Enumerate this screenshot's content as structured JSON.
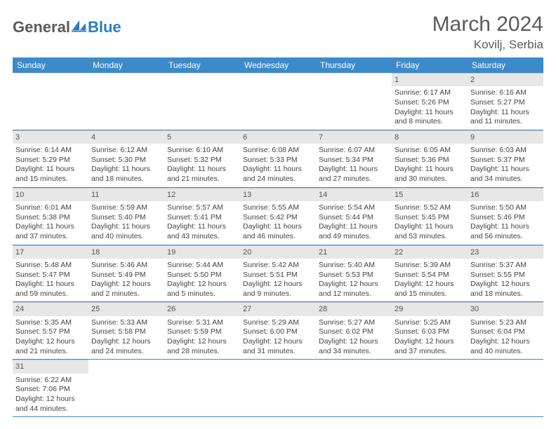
{
  "logo": {
    "part1": "General",
    "part2": "Blue"
  },
  "title": "March 2024",
  "location": "Kovilj, Serbia",
  "colors": {
    "header_bg": "#3c8ac9",
    "header_text": "#ffffff",
    "daynum_bg": "#e7e7e7",
    "row_border": "#3c8ac9",
    "text": "#444444",
    "title_text": "#5a5a5a"
  },
  "weekdays": [
    "Sunday",
    "Monday",
    "Tuesday",
    "Wednesday",
    "Thursday",
    "Friday",
    "Saturday"
  ],
  "grid": {
    "first_weekday_index": 5,
    "num_days": 31
  },
  "days": {
    "1": {
      "sunrise": "6:17 AM",
      "sunset": "5:26 PM",
      "daylight": "11 hours and 8 minutes."
    },
    "2": {
      "sunrise": "6:16 AM",
      "sunset": "5:27 PM",
      "daylight": "11 hours and 11 minutes."
    },
    "3": {
      "sunrise": "6:14 AM",
      "sunset": "5:29 PM",
      "daylight": "11 hours and 15 minutes."
    },
    "4": {
      "sunrise": "6:12 AM",
      "sunset": "5:30 PM",
      "daylight": "11 hours and 18 minutes."
    },
    "5": {
      "sunrise": "6:10 AM",
      "sunset": "5:32 PM",
      "daylight": "11 hours and 21 minutes."
    },
    "6": {
      "sunrise": "6:08 AM",
      "sunset": "5:33 PM",
      "daylight": "11 hours and 24 minutes."
    },
    "7": {
      "sunrise": "6:07 AM",
      "sunset": "5:34 PM",
      "daylight": "11 hours and 27 minutes."
    },
    "8": {
      "sunrise": "6:05 AM",
      "sunset": "5:36 PM",
      "daylight": "11 hours and 30 minutes."
    },
    "9": {
      "sunrise": "6:03 AM",
      "sunset": "5:37 PM",
      "daylight": "11 hours and 34 minutes."
    },
    "10": {
      "sunrise": "6:01 AM",
      "sunset": "5:38 PM",
      "daylight": "11 hours and 37 minutes."
    },
    "11": {
      "sunrise": "5:59 AM",
      "sunset": "5:40 PM",
      "daylight": "11 hours and 40 minutes."
    },
    "12": {
      "sunrise": "5:57 AM",
      "sunset": "5:41 PM",
      "daylight": "11 hours and 43 minutes."
    },
    "13": {
      "sunrise": "5:55 AM",
      "sunset": "5:42 PM",
      "daylight": "11 hours and 46 minutes."
    },
    "14": {
      "sunrise": "5:54 AM",
      "sunset": "5:44 PM",
      "daylight": "11 hours and 49 minutes."
    },
    "15": {
      "sunrise": "5:52 AM",
      "sunset": "5:45 PM",
      "daylight": "11 hours and 53 minutes."
    },
    "16": {
      "sunrise": "5:50 AM",
      "sunset": "5:46 PM",
      "daylight": "11 hours and 56 minutes."
    },
    "17": {
      "sunrise": "5:48 AM",
      "sunset": "5:47 PM",
      "daylight": "11 hours and 59 minutes."
    },
    "18": {
      "sunrise": "5:46 AM",
      "sunset": "5:49 PM",
      "daylight": "12 hours and 2 minutes."
    },
    "19": {
      "sunrise": "5:44 AM",
      "sunset": "5:50 PM",
      "daylight": "12 hours and 5 minutes."
    },
    "20": {
      "sunrise": "5:42 AM",
      "sunset": "5:51 PM",
      "daylight": "12 hours and 9 minutes."
    },
    "21": {
      "sunrise": "5:40 AM",
      "sunset": "5:53 PM",
      "daylight": "12 hours and 12 minutes."
    },
    "22": {
      "sunrise": "5:39 AM",
      "sunset": "5:54 PM",
      "daylight": "12 hours and 15 minutes."
    },
    "23": {
      "sunrise": "5:37 AM",
      "sunset": "5:55 PM",
      "daylight": "12 hours and 18 minutes."
    },
    "24": {
      "sunrise": "5:35 AM",
      "sunset": "5:57 PM",
      "daylight": "12 hours and 21 minutes."
    },
    "25": {
      "sunrise": "5:33 AM",
      "sunset": "5:58 PM",
      "daylight": "12 hours and 24 minutes."
    },
    "26": {
      "sunrise": "5:31 AM",
      "sunset": "5:59 PM",
      "daylight": "12 hours and 28 minutes."
    },
    "27": {
      "sunrise": "5:29 AM",
      "sunset": "6:00 PM",
      "daylight": "12 hours and 31 minutes."
    },
    "28": {
      "sunrise": "5:27 AM",
      "sunset": "6:02 PM",
      "daylight": "12 hours and 34 minutes."
    },
    "29": {
      "sunrise": "5:25 AM",
      "sunset": "6:03 PM",
      "daylight": "12 hours and 37 minutes."
    },
    "30": {
      "sunrise": "5:23 AM",
      "sunset": "6:04 PM",
      "daylight": "12 hours and 40 minutes."
    },
    "31": {
      "sunrise": "6:22 AM",
      "sunset": "7:06 PM",
      "daylight": "12 hours and 44 minutes."
    }
  },
  "labels": {
    "sunrise": "Sunrise:",
    "sunset": "Sunset:",
    "daylight": "Daylight:"
  }
}
